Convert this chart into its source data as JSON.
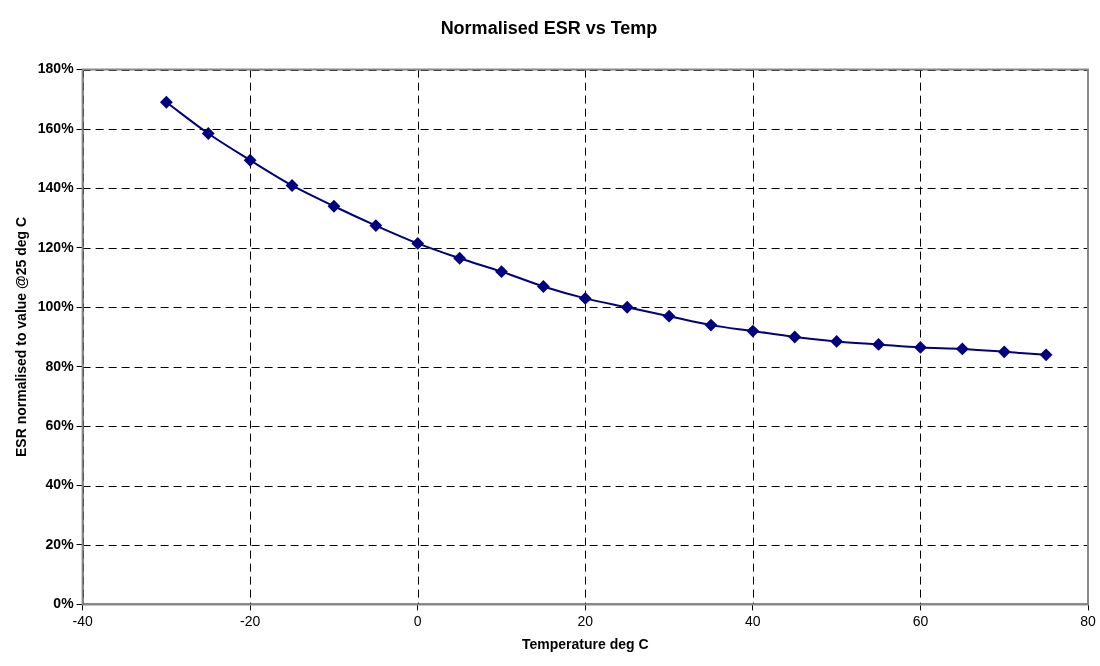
{
  "chart_data": {
    "type": "line",
    "title": "Normalised ESR vs Temp",
    "xlabel": "Temperature deg C",
    "ylabel": "ESR normalised to value @25 deg C",
    "x": [
      -30,
      -25,
      -20,
      -15,
      -10,
      -5,
      0,
      5,
      10,
      15,
      20,
      25,
      30,
      35,
      40,
      45,
      50,
      55,
      60,
      65,
      70,
      75
    ],
    "series": [
      {
        "color": "#000080",
        "values": [
          169,
          158.5,
          149.5,
          141,
          134,
          127.5,
          121.5,
          116.5,
          112,
          107,
          103,
          100,
          97,
          94,
          92,
          90,
          88.5,
          87.5,
          86.5,
          86,
          85,
          84
        ]
      }
    ],
    "xlim": [
      -40,
      80
    ],
    "xticks": [
      -40,
      -20,
      0,
      20,
      40,
      60,
      80
    ],
    "ylim": [
      0,
      180
    ],
    "yticks": [
      {
        "value": 0,
        "label": "0%"
      },
      {
        "value": 20,
        "label": "20%"
      },
      {
        "value": 40,
        "label": "40%"
      },
      {
        "value": 60,
        "label": "60%"
      },
      {
        "value": 80,
        "label": "80%"
      },
      {
        "value": 100,
        "label": "100%"
      },
      {
        "value": 120,
        "label": "120%"
      },
      {
        "value": 140,
        "label": "140%"
      },
      {
        "value": 160,
        "label": "160%"
      },
      {
        "value": 180,
        "label": "180%"
      }
    ],
    "grid": true,
    "legend": false,
    "marker": "diamond",
    "line_style": "solid"
  }
}
